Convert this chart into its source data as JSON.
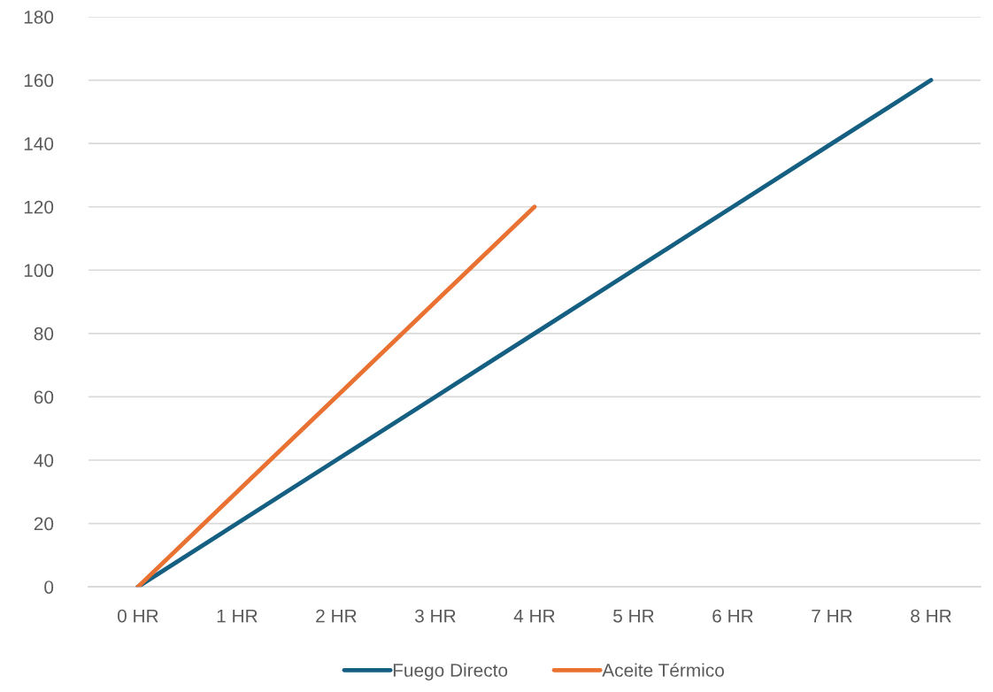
{
  "chart_data": {
    "type": "line",
    "categories": [
      "0 HR",
      "1 HR",
      "2 HR",
      "3 HR",
      "4 HR",
      "5 HR",
      "6 HR",
      "7 HR",
      "8 HR"
    ],
    "series": [
      {
        "name": "Fuego Directo",
        "color": "#156082",
        "values": [
          0,
          20,
          40,
          60,
          80,
          100,
          120,
          140,
          160
        ]
      },
      {
        "name": "Aceite Térmico",
        "color": "#e97132",
        "values": [
          0,
          30,
          60,
          90,
          120,
          null,
          null,
          null,
          null
        ]
      }
    ],
    "ylim": [
      0,
      180
    ],
    "yticks": [
      0,
      20,
      40,
      60,
      80,
      100,
      120,
      140,
      160,
      180
    ],
    "grid": "y",
    "legend": "bottom",
    "marker": "none",
    "line_style": "solid"
  }
}
